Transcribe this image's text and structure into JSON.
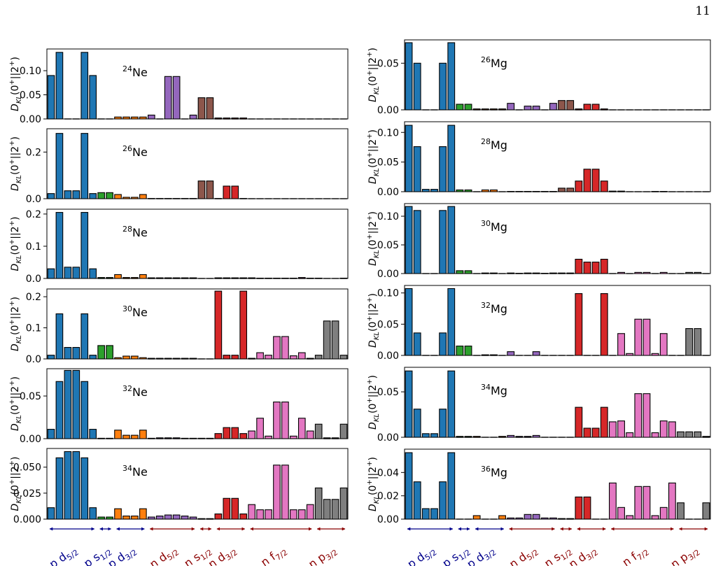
{
  "page_number": "11",
  "colors": {
    "p_d52": "#1f77b4",
    "p_s12": "#2ca02c",
    "p_d32": "#ff7f0e",
    "n_d52": "#9467bd",
    "n_s12": "#8c564b",
    "n_d32": "#d62728",
    "n_f72": "#e377c2",
    "n_p32": "#7f7f7f",
    "proton_arrow": "#00008b",
    "neutron_arrow": "#8b0000"
  },
  "bar_color_sequence": [
    "p_d52",
    "p_d52",
    "p_d52",
    "p_d52",
    "p_d52",
    "p_d52",
    "p_s12",
    "p_s12",
    "p_d32",
    "p_d32",
    "p_d32",
    "p_d32",
    "n_d52",
    "n_d52",
    "n_d52",
    "n_d52",
    "n_d52",
    "n_d52",
    "n_s12",
    "n_s12",
    "n_d32",
    "n_d32",
    "n_d32",
    "n_d32",
    "n_f72",
    "n_f72",
    "n_f72",
    "n_f72",
    "n_f72",
    "n_f72",
    "n_f72",
    "n_f72",
    "n_p32",
    "n_p32",
    "n_p32",
    "n_p32"
  ],
  "orbital_labels": [
    {
      "id": "p-d52",
      "pre": "p d",
      "sub": "5/2",
      "group": "proton"
    },
    {
      "id": "p-s12",
      "pre": "p s",
      "sub": "1/2",
      "group": "proton"
    },
    {
      "id": "p-d32",
      "pre": "p d",
      "sub": "3/2",
      "group": "proton"
    },
    {
      "id": "n-d52",
      "pre": "n d",
      "sub": "5/2",
      "group": "neutron"
    },
    {
      "id": "n-s12",
      "pre": "n s",
      "sub": "1/2",
      "group": "neutron"
    },
    {
      "id": "n-d32",
      "pre": "n d",
      "sub": "3/2",
      "group": "neutron"
    },
    {
      "id": "n-f72",
      "pre": "n f",
      "sub": "7/2",
      "group": "neutron"
    },
    {
      "id": "n-p32",
      "pre": "n p",
      "sub": "3/2",
      "group": "neutron"
    }
  ],
  "ylabel": {
    "main": "D",
    "sub": "KL",
    "rest": "(0",
    "sup1": "+",
    "mid": "||2",
    "sup2": "+",
    "end": ")"
  },
  "chart_data": [
    {
      "type": "bar",
      "column": "left",
      "nucleus_mass": "24",
      "nucleus_symbol": "Ne",
      "ylim": [
        0,
        0.145
      ],
      "yticks": [
        0.0,
        0.05,
        0.1
      ],
      "yticklabels": [
        "0.00",
        "0.05",
        "0.10"
      ],
      "values": [
        0.09,
        0.138,
        0,
        0,
        0.138,
        0.09,
        0,
        0,
        0.004,
        0.004,
        0.004,
        0.004,
        0.008,
        0,
        0.088,
        0.088,
        0,
        0.008,
        0.044,
        0.044,
        0.002,
        0.002,
        0.002,
        0.002,
        0,
        0,
        0,
        0,
        0,
        0,
        0,
        0,
        0,
        0,
        0,
        0
      ]
    },
    {
      "type": "bar",
      "column": "left",
      "nucleus_mass": "26",
      "nucleus_symbol": "Ne",
      "ylim": [
        0,
        0.3
      ],
      "yticks": [
        0.0,
        0.2
      ],
      "yticklabels": [
        "0.0",
        "0.2"
      ],
      "values": [
        0.022,
        0.28,
        0.034,
        0.034,
        0.28,
        0.022,
        0.026,
        0.026,
        0.018,
        0.006,
        0.006,
        0.018,
        0.001,
        0.001,
        0.001,
        0.001,
        0.001,
        0.001,
        0.076,
        0.076,
        0.001,
        0.054,
        0.054,
        0.001,
        0,
        0,
        0,
        0,
        0,
        0,
        0,
        0,
        0,
        0,
        0,
        0
      ]
    },
    {
      "type": "bar",
      "column": "left",
      "nucleus_mass": "28",
      "nucleus_symbol": "Ne",
      "ylim": [
        0,
        0.215
      ],
      "yticks": [
        0.0,
        0.1,
        0.2
      ],
      "yticklabels": [
        "0.0",
        "0.1",
        "0.2"
      ],
      "values": [
        0.03,
        0.205,
        0.035,
        0.035,
        0.205,
        0.03,
        0.003,
        0.003,
        0.012,
        0.003,
        0.003,
        0.012,
        0.002,
        0.002,
        0.002,
        0.002,
        0.002,
        0.002,
        0,
        0,
        0.002,
        0.002,
        0.002,
        0.002,
        0.002,
        0.001,
        0.001,
        0.001,
        0.001,
        0.001,
        0.003,
        0.001,
        0.001,
        0,
        0,
        0.001
      ]
    },
    {
      "type": "bar",
      "column": "left",
      "nucleus_mass": "30",
      "nucleus_symbol": "Ne",
      "ylim": [
        0,
        0.225
      ],
      "yticks": [
        0.0,
        0.1,
        0.2
      ],
      "yticklabels": [
        "0.0",
        "0.1",
        "0.2"
      ],
      "values": [
        0.012,
        0.145,
        0.037,
        0.037,
        0.145,
        0.012,
        0.043,
        0.043,
        0.004,
        0.009,
        0.009,
        0.004,
        0.002,
        0.002,
        0.002,
        0.002,
        0.002,
        0.002,
        0,
        0,
        0.218,
        0.012,
        0.012,
        0.218,
        0.002,
        0.02,
        0.012,
        0.072,
        0.072,
        0.01,
        0.02,
        0.002,
        0.012,
        0.122,
        0.122,
        0.012
      ]
    },
    {
      "type": "bar",
      "column": "left",
      "nucleus_mass": "32",
      "nucleus_symbol": "Ne",
      "ylim": [
        0,
        0.082
      ],
      "yticks": [
        0.0,
        0.05
      ],
      "yticklabels": [
        "0.00",
        "0.05"
      ],
      "values": [
        0.011,
        0.067,
        0.08,
        0.08,
        0.067,
        0.011,
        0.0005,
        0.0005,
        0.01,
        0.004,
        0.004,
        0.01,
        0.0005,
        0.001,
        0.001,
        0.001,
        0.0005,
        0.0005,
        0.0005,
        0.0005,
        0.006,
        0.013,
        0.013,
        0.006,
        0.009,
        0.024,
        0.003,
        0.043,
        0.043,
        0.003,
        0.024,
        0.009,
        0.017,
        0.001,
        0.001,
        0.017
      ]
    },
    {
      "type": "bar",
      "column": "left",
      "nucleus_mass": "34",
      "nucleus_symbol": "Ne",
      "ylim": [
        0,
        0.068
      ],
      "yticks": [
        0.0,
        0.025,
        0.05
      ],
      "yticklabels": [
        "0.000",
        "0.025",
        "0.050"
      ],
      "values": [
        0.011,
        0.059,
        0.065,
        0.065,
        0.059,
        0.011,
        0.002,
        0.002,
        0.01,
        0.003,
        0.003,
        0.01,
        0.002,
        0.003,
        0.004,
        0.004,
        0.003,
        0.002,
        0.0005,
        0.0005,
        0.005,
        0.02,
        0.02,
        0.005,
        0.014,
        0.009,
        0.009,
        0.052,
        0.052,
        0.009,
        0.009,
        0.014,
        0.03,
        0.019,
        0.019,
        0.03
      ]
    },
    {
      "type": "bar",
      "column": "right",
      "nucleus_mass": "26",
      "nucleus_symbol": "Mg",
      "ylim": [
        0,
        0.075
      ],
      "yticks": [
        0.0,
        0.05
      ],
      "yticklabels": [
        "0.00",
        "0.05"
      ],
      "values": [
        0.072,
        0.05,
        0,
        0,
        0.05,
        0.072,
        0.006,
        0.006,
        0.001,
        0.001,
        0.001,
        0.001,
        0.007,
        0,
        0.004,
        0.004,
        0,
        0.007,
        0.01,
        0.01,
        0.001,
        0.006,
        0.006,
        0.001,
        0,
        0,
        0,
        0,
        0,
        0,
        0,
        0,
        0,
        0,
        0,
        0
      ]
    },
    {
      "type": "bar",
      "column": "right",
      "nucleus_mass": "28",
      "nucleus_symbol": "Mg",
      "ylim": [
        0,
        0.118
      ],
      "yticks": [
        0.0,
        0.05,
        0.1
      ],
      "yticklabels": [
        "0.00",
        "0.05",
        "0.10"
      ],
      "values": [
        0.112,
        0.076,
        0.004,
        0.004,
        0.076,
        0.112,
        0.003,
        0.003,
        0,
        0.003,
        0.003,
        0,
        0.0005,
        0.0005,
        0.0005,
        0.0005,
        0.0005,
        0.0005,
        0.006,
        0.006,
        0.018,
        0.038,
        0.038,
        0.018,
        0.001,
        0.001,
        0,
        0,
        0,
        0.0005,
        0.0005,
        0,
        0,
        0,
        0,
        0
      ]
    },
    {
      "type": "bar",
      "column": "right",
      "nucleus_mass": "30",
      "nucleus_symbol": "Mg",
      "ylim": [
        0,
        0.122
      ],
      "yticks": [
        0.0,
        0.05,
        0.1
      ],
      "yticklabels": [
        "0.00",
        "0.05",
        "0.10"
      ],
      "values": [
        0.117,
        0.11,
        0,
        0,
        0.11,
        0.117,
        0.005,
        0.005,
        0,
        0.001,
        0.001,
        0,
        0.001,
        0.0005,
        0.001,
        0.001,
        0.0005,
        0.001,
        0.001,
        0.001,
        0.025,
        0.02,
        0.02,
        0.025,
        0,
        0.002,
        0,
        0.002,
        0.002,
        0,
        0.002,
        0,
        0,
        0.002,
        0.002,
        0
      ]
    },
    {
      "type": "bar",
      "column": "right",
      "nucleus_mass": "32",
      "nucleus_symbol": "Mg",
      "ylim": [
        0,
        0.112
      ],
      "yticks": [
        0.0,
        0.05,
        0.1
      ],
      "yticklabels": [
        "0.00",
        "0.05",
        "0.10"
      ],
      "values": [
        0.107,
        0.036,
        0,
        0,
        0.036,
        0.107,
        0.015,
        0.015,
        0,
        0.001,
        0.001,
        0,
        0.006,
        0,
        0,
        0.006,
        0,
        0,
        0,
        0,
        0.099,
        0,
        0,
        0.099,
        0,
        0.035,
        0.003,
        0.058,
        0.058,
        0.003,
        0.035,
        0,
        0,
        0.043,
        0.043,
        0
      ]
    },
    {
      "type": "bar",
      "column": "right",
      "nucleus_mass": "34",
      "nucleus_symbol": "Mg",
      "ylim": [
        0,
        0.077
      ],
      "yticks": [
        0.0,
        0.05
      ],
      "yticklabels": [
        "0.00",
        "0.05"
      ],
      "values": [
        0.073,
        0.031,
        0.004,
        0.004,
        0.031,
        0.073,
        0.001,
        0.001,
        0.001,
        0,
        0,
        0.001,
        0.002,
        0.001,
        0.001,
        0.002,
        0,
        0,
        0,
        0,
        0.033,
        0.01,
        0.01,
        0.033,
        0.017,
        0.018,
        0.005,
        0.048,
        0.048,
        0.005,
        0.018,
        0.017,
        0.006,
        0.006,
        0.006,
        0.001
      ]
    },
    {
      "type": "bar",
      "column": "right",
      "nucleus_mass": "36",
      "nucleus_symbol": "Mg",
      "ylim": [
        0,
        0.06
      ],
      "yticks": [
        0.0,
        0.02,
        0.04
      ],
      "yticklabels": [
        "0.00",
        "0.02",
        "0.04"
      ],
      "values": [
        0.057,
        0.032,
        0.009,
        0.009,
        0.032,
        0.057,
        0,
        0,
        0.003,
        0,
        0,
        0.003,
        0.001,
        0.001,
        0.004,
        0.004,
        0.001,
        0.001,
        0.0005,
        0.0005,
        0.019,
        0.019,
        0,
        0,
        0.031,
        0.01,
        0.003,
        0.028,
        0.028,
        0.003,
        0.01,
        0.031,
        0.014,
        0,
        0,
        0.014
      ]
    }
  ]
}
